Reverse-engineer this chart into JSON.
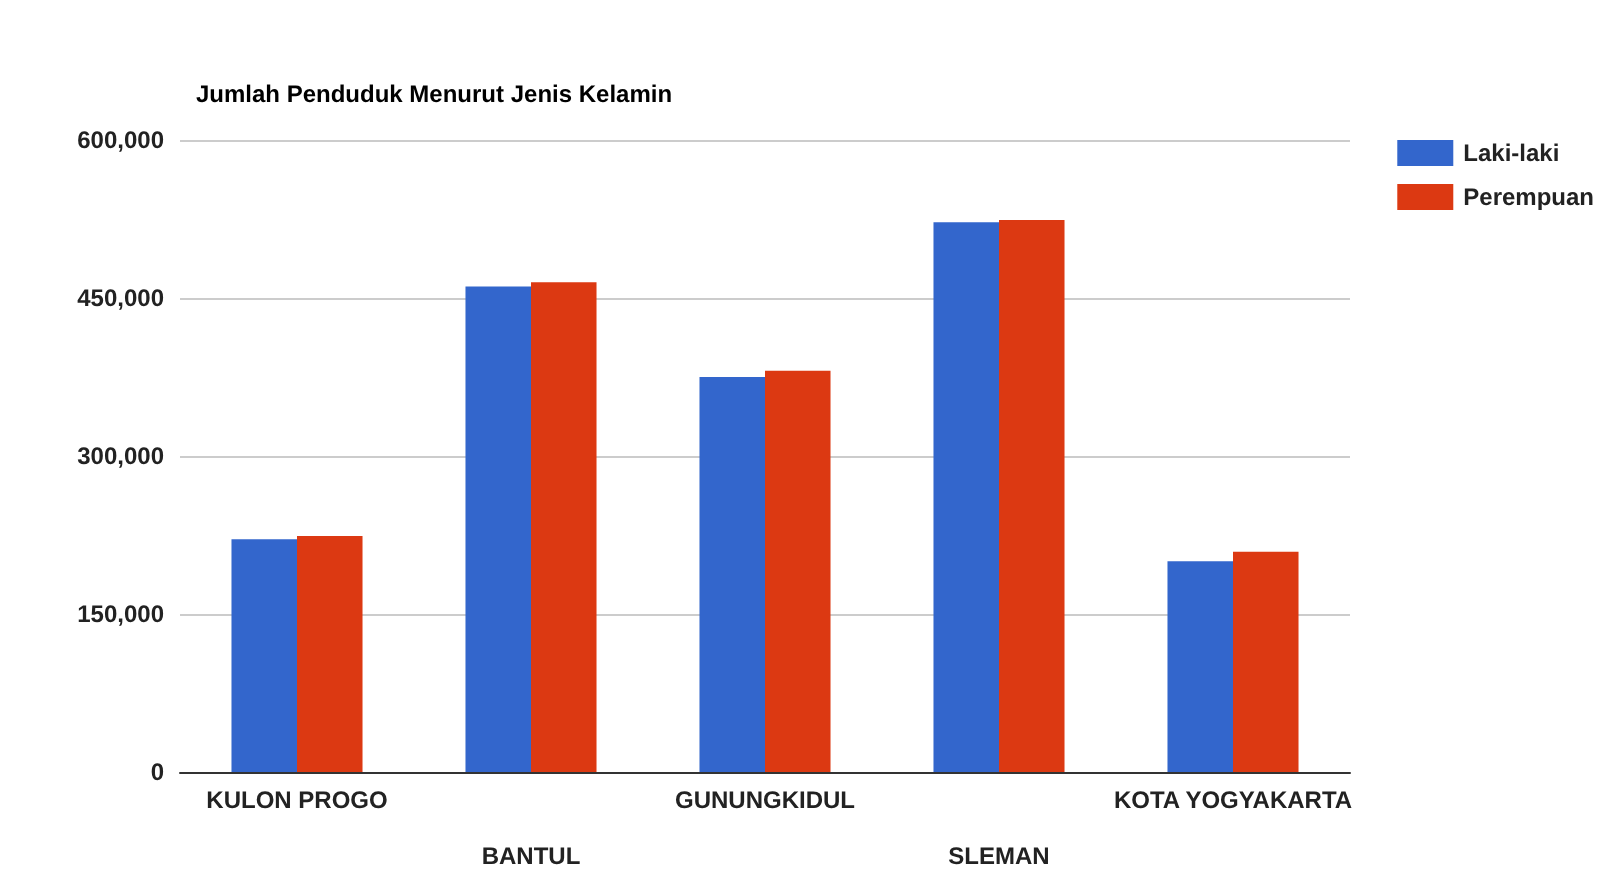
{
  "chart_data": {
    "type": "bar",
    "title": "Jumlah Penduduk Menurut Jenis Kelamin",
    "categories": [
      "KULON PROGO",
      "BANTUL",
      "GUNUNGKIDUL",
      "SLEMAN",
      "KOTA YOGYAKARTA"
    ],
    "series": [
      {
        "name": "Laki-laki",
        "color": "#3366cc",
        "values": [
          221000,
          461000,
          375000,
          522000,
          200000
        ]
      },
      {
        "name": "Perempuan",
        "color": "#dc3912",
        "values": [
          224000,
          465000,
          381000,
          524000,
          209000
        ]
      }
    ],
    "ylim": [
      0,
      600000
    ],
    "yticks": [
      0,
      {
        "value": 150000,
        "label": "150,000"
      },
      {
        "value": 300000,
        "label": "300,000"
      },
      {
        "value": 450000,
        "label": "450,000"
      },
      {
        "value": 600000,
        "label": "600,000"
      }
    ],
    "grid": "y",
    "legend": "top right"
  }
}
